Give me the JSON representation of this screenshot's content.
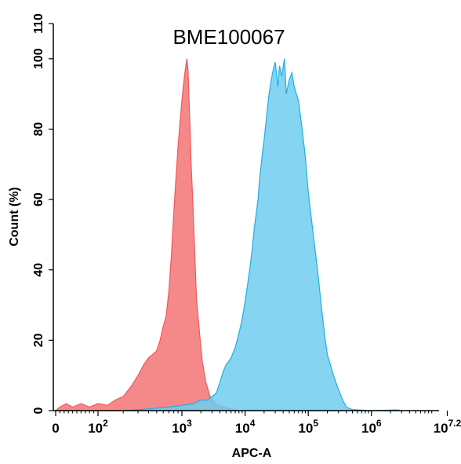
{
  "chart_data": {
    "type": "area",
    "title": "BME100067",
    "xlabel": "APC-A",
    "ylabel": "Count (%)",
    "x_scale": "biexponential",
    "xlim": [
      0,
      15848932
    ],
    "ylim": [
      0,
      110
    ],
    "yticks": [
      0,
      20,
      40,
      60,
      80,
      100,
      110
    ],
    "xticks": [
      {
        "base": "0",
        "exp": ""
      },
      {
        "base": "10",
        "exp": "2"
      },
      {
        "base": "10",
        "exp": "3"
      },
      {
        "base": "10",
        "exp": "4"
      },
      {
        "base": "10",
        "exp": "5"
      },
      {
        "base": "10",
        "exp": "6"
      },
      {
        "base": "10",
        "exp": "7.2"
      }
    ],
    "grid": false,
    "legend": "none",
    "series": [
      {
        "color": "#f0585a",
        "fill": "#f47f80",
        "points": [
          [
            0,
            0
          ],
          [
            10,
            1
          ],
          [
            25,
            2
          ],
          [
            40,
            1
          ],
          [
            60,
            2
          ],
          [
            80,
            1
          ],
          [
            100,
            2
          ],
          [
            130,
            1.5
          ],
          [
            160,
            3
          ],
          [
            200,
            4
          ],
          [
            250,
            7
          ],
          [
            300,
            10
          ],
          [
            350,
            13
          ],
          [
            400,
            15
          ],
          [
            450,
            16
          ],
          [
            500,
            17
          ],
          [
            550,
            20
          ],
          [
            600,
            24
          ],
          [
            650,
            27
          ],
          [
            700,
            34
          ],
          [
            750,
            44
          ],
          [
            800,
            56
          ],
          [
            850,
            66
          ],
          [
            900,
            75
          ],
          [
            950,
            82
          ],
          [
            1000,
            88
          ],
          [
            1050,
            92
          ],
          [
            1100,
            95
          ],
          [
            1150,
            98
          ],
          [
            1200,
            100
          ],
          [
            1250,
            97
          ],
          [
            1300,
            88
          ],
          [
            1350,
            80
          ],
          [
            1400,
            70
          ],
          [
            1500,
            58
          ],
          [
            1600,
            44
          ],
          [
            1700,
            32
          ],
          [
            1900,
            22
          ],
          [
            2100,
            14
          ],
          [
            2400,
            8
          ],
          [
            2800,
            4
          ],
          [
            3400,
            2
          ],
          [
            4500,
            1
          ],
          [
            6000,
            0.5
          ],
          [
            8000,
            0
          ]
        ]
      },
      {
        "color": "#22aee0",
        "fill": "#6fcdf0",
        "points": [
          [
            200,
            0
          ],
          [
            400,
            0.5
          ],
          [
            700,
            1
          ],
          [
            1000,
            1.5
          ],
          [
            1500,
            2
          ],
          [
            2000,
            3
          ],
          [
            2500,
            3
          ],
          [
            3000,
            4
          ],
          [
            3500,
            5
          ],
          [
            4000,
            8
          ],
          [
            4500,
            11
          ],
          [
            5000,
            13
          ],
          [
            5500,
            14
          ],
          [
            6000,
            15
          ],
          [
            7000,
            18
          ],
          [
            8000,
            22
          ],
          [
            9000,
            26
          ],
          [
            10000,
            31
          ],
          [
            11000,
            36
          ],
          [
            12000,
            41
          ],
          [
            13000,
            46
          ],
          [
            14000,
            52
          ],
          [
            15000,
            56
          ],
          [
            16000,
            60
          ],
          [
            17000,
            66
          ],
          [
            18000,
            70
          ],
          [
            19000,
            74
          ],
          [
            20000,
            77
          ],
          [
            22000,
            84
          ],
          [
            24000,
            90
          ],
          [
            26000,
            94
          ],
          [
            28000,
            97
          ],
          [
            30000,
            99
          ],
          [
            33000,
            92
          ],
          [
            35000,
            98
          ],
          [
            38000,
            95
          ],
          [
            42000,
            100
          ],
          [
            45000,
            90
          ],
          [
            50000,
            94
          ],
          [
            55000,
            96
          ],
          [
            60000,
            92
          ],
          [
            70000,
            88
          ],
          [
            80000,
            80
          ],
          [
            90000,
            72
          ],
          [
            100000,
            62
          ],
          [
            120000,
            50
          ],
          [
            140000,
            40
          ],
          [
            160000,
            30
          ],
          [
            180000,
            22
          ],
          [
            200000,
            16
          ],
          [
            250000,
            10
          ],
          [
            300000,
            6
          ],
          [
            350000,
            3
          ],
          [
            400000,
            1
          ],
          [
            500000,
            0.3
          ],
          [
            1000000,
            0
          ],
          [
            2500000,
            0.2
          ],
          [
            3000000,
            0
          ]
        ]
      }
    ]
  }
}
